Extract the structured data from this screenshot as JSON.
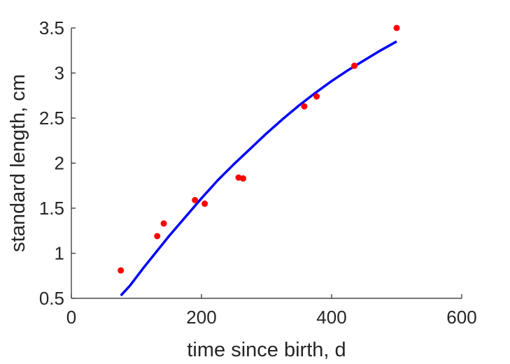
{
  "chart_data": {
    "type": "scatter",
    "title": "",
    "xlabel": "time since birth, d",
    "ylabel": "standard length, cm",
    "xlim": [
      0,
      600
    ],
    "ylim": [
      0.5,
      3.5
    ],
    "xticks": [
      0,
      200,
      400,
      600
    ],
    "xtick_labels": [
      "0",
      "200",
      "400",
      "600"
    ],
    "yticks": [
      0.5,
      1,
      1.5,
      2,
      2.5,
      3,
      3.5
    ],
    "ytick_labels": [
      "0.5",
      "1",
      "1.5",
      "2",
      "2.5",
      "3",
      "3.5"
    ],
    "grid": false,
    "series": [
      {
        "kind": "scatter",
        "color": "#ff0000",
        "x": [
          76,
          132,
          142,
          190,
          205,
          257,
          264,
          358,
          377,
          435,
          500
        ],
        "y": [
          0.81,
          1.19,
          1.33,
          1.59,
          1.55,
          1.84,
          1.83,
          2.63,
          2.74,
          3.08,
          3.5
        ]
      },
      {
        "kind": "line",
        "color": "#0000ff",
        "x": [
          76,
          90,
          110,
          130,
          150,
          175,
          200,
          225,
          250,
          275,
          300,
          325,
          350,
          375,
          400,
          425,
          450,
          475,
          500
        ],
        "y": [
          0.53,
          0.64,
          0.83,
          1.01,
          1.19,
          1.4,
          1.61,
          1.81,
          1.99,
          2.16,
          2.33,
          2.49,
          2.64,
          2.78,
          2.91,
          3.03,
          3.14,
          3.25,
          3.35
        ]
      }
    ]
  }
}
